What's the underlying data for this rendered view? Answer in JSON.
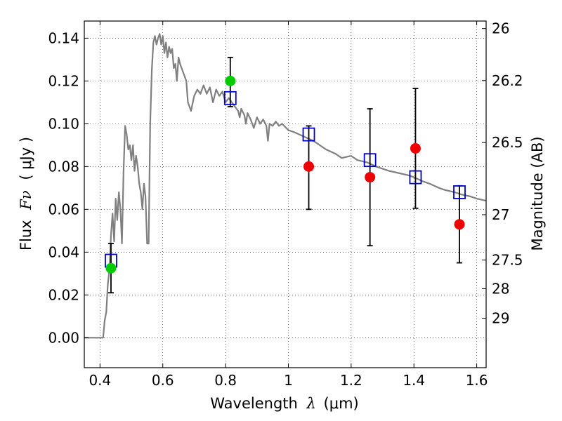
{
  "chart_data": {
    "type": "scatter",
    "xlabel": {
      "prefix": "Wavelength",
      "symbol": "λ",
      "unit": "(μm)"
    },
    "ylabel": {
      "prefix": "Flux",
      "symbol": "Fν",
      "unit": "( μJy )"
    },
    "y2label": "Magnitude (AB)",
    "xlim": [
      0.35,
      1.63
    ],
    "ylim": [
      -0.014,
      0.148
    ],
    "grid": true,
    "x_ticks": [
      0.4,
      0.6,
      0.8,
      1.0,
      1.2,
      1.4,
      1.6
    ],
    "x_tick_labels": [
      "0.4",
      "0.6",
      "0.8",
      "1",
      "1.2",
      "1.4",
      "1.6"
    ],
    "y_ticks": [
      0.0,
      0.02,
      0.04,
      0.06,
      0.08,
      0.1,
      0.12,
      0.14
    ],
    "y_tick_labels": [
      "0.00",
      "0.02",
      "0.04",
      "0.06",
      "0.08",
      "0.10",
      "0.12",
      "0.14"
    ],
    "mag_ticks": [
      {
        "label": "26",
        "flux": 0.1445
      },
      {
        "label": "26.2",
        "flux": 0.1202
      },
      {
        "label": "26.5",
        "flux": 0.0912
      },
      {
        "label": "27",
        "flux": 0.0575
      },
      {
        "label": "27.5",
        "flux": 0.0363
      },
      {
        "label": "28",
        "flux": 0.0229
      },
      {
        "label": "29",
        "flux": 0.0091
      }
    ],
    "series": [
      {
        "type": "line",
        "color": "#808080",
        "points": [
          [
            0.35,
            0.0
          ],
          [
            0.41,
            0.0
          ],
          [
            0.415,
            0.008
          ],
          [
            0.42,
            0.012
          ],
          [
            0.425,
            0.025
          ],
          [
            0.43,
            0.032
          ],
          [
            0.435,
            0.048
          ],
          [
            0.44,
            0.058
          ],
          [
            0.445,
            0.045
          ],
          [
            0.45,
            0.065
          ],
          [
            0.455,
            0.055
          ],
          [
            0.46,
            0.068
          ],
          [
            0.465,
            0.06
          ],
          [
            0.47,
            0.044
          ],
          [
            0.475,
            0.078
          ],
          [
            0.48,
            0.099
          ],
          [
            0.485,
            0.095
          ],
          [
            0.49,
            0.088
          ],
          [
            0.495,
            0.09
          ],
          [
            0.5,
            0.083
          ],
          [
            0.505,
            0.09
          ],
          [
            0.51,
            0.078
          ],
          [
            0.515,
            0.085
          ],
          [
            0.52,
            0.08
          ],
          [
            0.525,
            0.072
          ],
          [
            0.53,
            0.068
          ],
          [
            0.535,
            0.06
          ],
          [
            0.54,
            0.072
          ],
          [
            0.545,
            0.066
          ],
          [
            0.55,
            0.044
          ],
          [
            0.555,
            0.044
          ],
          [
            0.56,
            0.1
          ],
          [
            0.565,
            0.125
          ],
          [
            0.57,
            0.138
          ],
          [
            0.575,
            0.141
          ],
          [
            0.58,
            0.137
          ],
          [
            0.585,
            0.14
          ],
          [
            0.59,
            0.142
          ],
          [
            0.595,
            0.137
          ],
          [
            0.6,
            0.141
          ],
          [
            0.605,
            0.133
          ],
          [
            0.61,
            0.138
          ],
          [
            0.615,
            0.131
          ],
          [
            0.62,
            0.136
          ],
          [
            0.625,
            0.133
          ],
          [
            0.63,
            0.135
          ],
          [
            0.635,
            0.126
          ],
          [
            0.64,
            0.128
          ],
          [
            0.645,
            0.12
          ],
          [
            0.65,
            0.131
          ],
          [
            0.655,
            0.128
          ],
          [
            0.66,
            0.126
          ],
          [
            0.67,
            0.122
          ],
          [
            0.675,
            0.12
          ],
          [
            0.68,
            0.11
          ],
          [
            0.69,
            0.106
          ],
          [
            0.7,
            0.113
          ],
          [
            0.71,
            0.116
          ],
          [
            0.72,
            0.114
          ],
          [
            0.73,
            0.118
          ],
          [
            0.74,
            0.114
          ],
          [
            0.75,
            0.117
          ],
          [
            0.76,
            0.11
          ],
          [
            0.77,
            0.116
          ],
          [
            0.78,
            0.113
          ],
          [
            0.79,
            0.115
          ],
          [
            0.8,
            0.11
          ],
          [
            0.81,
            0.112
          ],
          [
            0.82,
            0.11
          ],
          [
            0.83,
            0.108
          ],
          [
            0.84,
            0.106
          ],
          [
            0.845,
            0.103
          ],
          [
            0.85,
            0.107
          ],
          [
            0.86,
            0.104
          ],
          [
            0.865,
            0.1
          ],
          [
            0.87,
            0.105
          ],
          [
            0.88,
            0.102
          ],
          [
            0.89,
            0.098
          ],
          [
            0.9,
            0.103
          ],
          [
            0.91,
            0.1
          ],
          [
            0.92,
            0.102
          ],
          [
            0.93,
            0.099
          ],
          [
            0.935,
            0.092
          ],
          [
            0.94,
            0.1
          ],
          [
            0.95,
            0.099
          ],
          [
            0.96,
            0.101
          ],
          [
            0.97,
            0.099
          ],
          [
            0.98,
            0.1
          ],
          [
            1.0,
            0.097
          ],
          [
            1.02,
            0.096
          ],
          [
            1.05,
            0.094
          ],
          [
            1.08,
            0.092
          ],
          [
            1.1,
            0.09
          ],
          [
            1.12,
            0.088
          ],
          [
            1.15,
            0.086
          ],
          [
            1.17,
            0.084
          ],
          [
            1.2,
            0.085
          ],
          [
            1.22,
            0.083
          ],
          [
            1.25,
            0.082
          ],
          [
            1.28,
            0.08
          ],
          [
            1.3,
            0.079
          ],
          [
            1.32,
            0.078
          ],
          [
            1.35,
            0.077
          ],
          [
            1.38,
            0.076
          ],
          [
            1.4,
            0.075
          ],
          [
            1.43,
            0.073
          ],
          [
            1.45,
            0.072
          ],
          [
            1.48,
            0.07
          ],
          [
            1.5,
            0.069
          ],
          [
            1.53,
            0.068
          ],
          [
            1.55,
            0.067
          ],
          [
            1.58,
            0.066
          ],
          [
            1.6,
            0.065
          ],
          [
            1.63,
            0.064
          ]
        ]
      },
      {
        "type": "errorbar",
        "color": "#000000",
        "points": [
          {
            "x": 0.435,
            "y": 0.033,
            "yerr_low": 0.012,
            "yerr_high": 0.011
          },
          {
            "x": 0.815,
            "y": 0.12,
            "yerr_low": 0.012,
            "yerr_high": 0.011
          },
          {
            "x": 1.065,
            "y": 0.08,
            "yerr_low": 0.02,
            "yerr_high": 0.019
          },
          {
            "x": 1.26,
            "y": 0.075,
            "yerr_low": 0.032,
            "yerr_high": 0.032
          },
          {
            "x": 1.405,
            "y": 0.0885,
            "yerr_low": 0.028,
            "yerr_high": 0.028
          },
          {
            "x": 1.545,
            "y": 0.053,
            "yerr_low": 0.018,
            "yerr_high": 0.018
          }
        ]
      },
      {
        "type": "squares",
        "color": "#0000cc",
        "points": [
          [
            0.435,
            0.036
          ],
          [
            0.815,
            0.112
          ],
          [
            1.065,
            0.095
          ],
          [
            1.26,
            0.083
          ],
          [
            1.405,
            0.075
          ],
          [
            1.545,
            0.068
          ]
        ]
      },
      {
        "type": "circles",
        "color": "#00cc00",
        "points": [
          [
            0.435,
            0.0325
          ],
          [
            0.815,
            0.12
          ]
        ]
      },
      {
        "type": "circles",
        "color": "#ee0000",
        "points": [
          [
            1.065,
            0.08
          ],
          [
            1.26,
            0.075
          ],
          [
            1.405,
            0.0885
          ],
          [
            1.545,
            0.053
          ]
        ]
      }
    ]
  }
}
